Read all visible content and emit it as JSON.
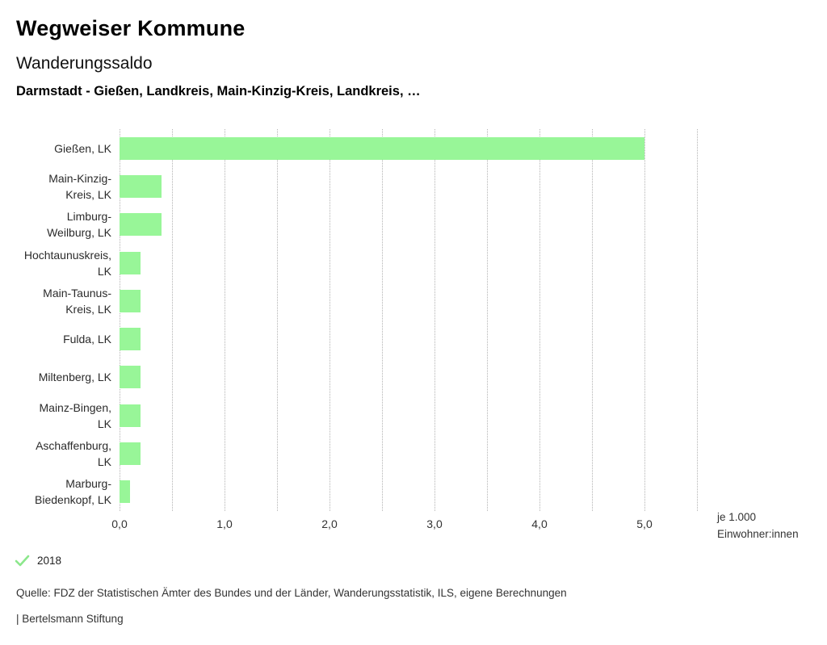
{
  "header": {
    "title": "Wegweiser Kommune",
    "subtitle": "Wanderungssaldo",
    "comparison": "Darmstadt - Gießen, Landkreis, Main-Kinzig-Kreis, Landkreis, …"
  },
  "chart_data": {
    "type": "bar",
    "orientation": "horizontal",
    "title": "Wanderungssaldo",
    "categories": [
      "Gießen, LK",
      "Main-Kinzig-Kreis, LK",
      "Limburg-Weilburg, LK",
      "Hochtaunuskreis, LK",
      "Main-Taunus-Kreis, LK",
      "Fulda, LK",
      "Miltenberg, LK",
      "Mainz-Bingen, LK",
      "Aschaffenburg, LK",
      "Marburg-Biedenkopf, LK"
    ],
    "category_label_lines": [
      [
        "Gießen, LK"
      ],
      [
        "Main-Kinzig-",
        "Kreis, LK"
      ],
      [
        "Limburg-",
        "Weilburg, LK"
      ],
      [
        "Hochtaunuskreis,",
        "LK"
      ],
      [
        "Main-Taunus-",
        "Kreis, LK"
      ],
      [
        "Fulda, LK"
      ],
      [
        "Miltenberg, LK"
      ],
      [
        "Mainz-Bingen,",
        "LK"
      ],
      [
        "Aschaffenburg,",
        "LK"
      ],
      [
        "Marburg-",
        "Biedenkopf, LK"
      ]
    ],
    "series": [
      {
        "name": "2018",
        "values": [
          5.0,
          0.4,
          0.4,
          0.2,
          0.2,
          0.2,
          0.2,
          0.2,
          0.2,
          0.1
        ]
      }
    ],
    "xlim": [
      0,
      5.5
    ],
    "grid_step": 0.5,
    "x_tick_values": [
      0,
      1,
      2,
      3,
      4,
      5
    ],
    "x_tick_labels": [
      "0,0",
      "1,0",
      "2,0",
      "3,0",
      "4,0",
      "5,0"
    ],
    "unit_label_lines": [
      "je 1.000",
      "Einwohner:innen"
    ],
    "bar_color": "#98f698",
    "grid": "dotted-vertical",
    "legend_position": "bottom-left"
  },
  "legend": {
    "year": "2018",
    "check_icon": "checkmark",
    "check_color": "#8ce78c"
  },
  "footer": {
    "source": "Quelle: FDZ der Statistischen Ämter des Bundes und der Länder, Wanderungsstatistik, ILS, eigene Berechnungen",
    "attribution": "| Bertelsmann Stiftung"
  }
}
